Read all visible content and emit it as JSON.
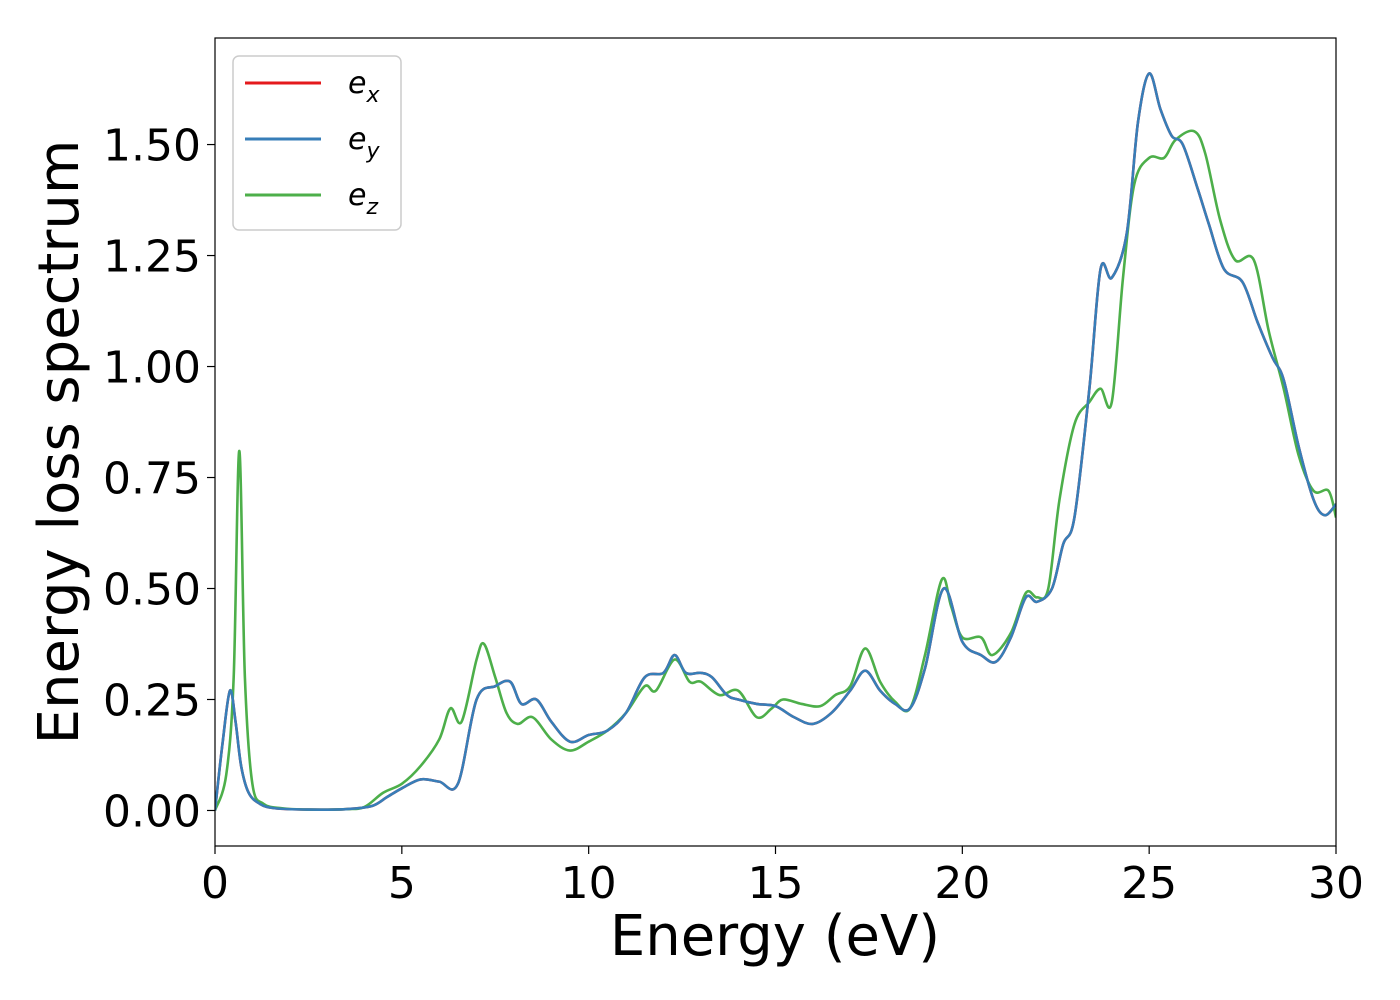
{
  "chart_data": {
    "type": "line",
    "title": "",
    "xlabel": "Energy (eV)",
    "ylabel": "Energy loss spectrum",
    "xlim": [
      0,
      30
    ],
    "ylim": [
      -0.08,
      1.74
    ],
    "xticks": [
      0,
      5,
      10,
      15,
      20,
      25,
      30
    ],
    "xtick_labels": [
      "0",
      "5",
      "10",
      "15",
      "20",
      "25",
      "30"
    ],
    "yticks": [
      0,
      0.25,
      0.5,
      0.75,
      1.0,
      1.25,
      1.5
    ],
    "ytick_labels": [
      "0.00",
      "0.25",
      "0.50",
      "0.75",
      "1.00",
      "1.25",
      "1.50"
    ],
    "grid": false,
    "legend_position": "top-left",
    "series": [
      {
        "name": "e",
        "subscript": "x",
        "color": "#e41a1c",
        "points": [
          [
            0,
            0
          ],
          [
            0.2,
            0.15
          ],
          [
            0.4,
            0.27
          ],
          [
            0.55,
            0.2
          ],
          [
            0.7,
            0.1
          ],
          [
            0.9,
            0.04
          ],
          [
            1.2,
            0.015
          ],
          [
            1.6,
            0.005
          ],
          [
            2.5,
            0.002
          ],
          [
            3.5,
            0.003
          ],
          [
            4.2,
            0.01
          ],
          [
            4.6,
            0.03
          ],
          [
            5.0,
            0.05
          ],
          [
            5.5,
            0.07
          ],
          [
            6.0,
            0.065
          ],
          [
            6.5,
            0.06
          ],
          [
            7.0,
            0.25
          ],
          [
            7.5,
            0.28
          ],
          [
            7.9,
            0.29
          ],
          [
            8.2,
            0.24
          ],
          [
            8.6,
            0.25
          ],
          [
            9.0,
            0.2
          ],
          [
            9.5,
            0.155
          ],
          [
            10.0,
            0.17
          ],
          [
            10.5,
            0.18
          ],
          [
            11.0,
            0.22
          ],
          [
            11.5,
            0.3
          ],
          [
            12.0,
            0.31
          ],
          [
            12.3,
            0.35
          ],
          [
            12.6,
            0.31
          ],
          [
            13.0,
            0.31
          ],
          [
            13.3,
            0.3
          ],
          [
            13.7,
            0.26
          ],
          [
            14.0,
            0.25
          ],
          [
            14.5,
            0.24
          ],
          [
            15.0,
            0.235
          ],
          [
            15.5,
            0.21
          ],
          [
            16.0,
            0.195
          ],
          [
            16.5,
            0.22
          ],
          [
            17.0,
            0.27
          ],
          [
            17.4,
            0.315
          ],
          [
            17.8,
            0.27
          ],
          [
            18.2,
            0.24
          ],
          [
            18.6,
            0.23
          ],
          [
            19.0,
            0.32
          ],
          [
            19.5,
            0.5
          ],
          [
            20.0,
            0.38
          ],
          [
            20.5,
            0.35
          ],
          [
            20.9,
            0.335
          ],
          [
            21.3,
            0.39
          ],
          [
            21.7,
            0.48
          ],
          [
            22.0,
            0.47
          ],
          [
            22.4,
            0.5
          ],
          [
            22.7,
            0.6
          ],
          [
            23.0,
            0.66
          ],
          [
            23.4,
            0.95
          ],
          [
            23.7,
            1.22
          ],
          [
            24.0,
            1.2
          ],
          [
            24.4,
            1.3
          ],
          [
            24.7,
            1.55
          ],
          [
            25.0,
            1.66
          ],
          [
            25.3,
            1.58
          ],
          [
            25.6,
            1.52
          ],
          [
            25.9,
            1.5
          ],
          [
            26.3,
            1.4
          ],
          [
            26.6,
            1.32
          ],
          [
            27.0,
            1.22
          ],
          [
            27.5,
            1.19
          ],
          [
            27.9,
            1.1
          ],
          [
            28.3,
            1.02
          ],
          [
            28.6,
            0.97
          ],
          [
            29.0,
            0.82
          ],
          [
            29.4,
            0.7
          ],
          [
            29.7,
            0.665
          ],
          [
            30,
            0.69
          ]
        ]
      },
      {
        "name": "e",
        "subscript": "y",
        "color": "#377eb8",
        "points": [
          [
            0,
            0
          ],
          [
            0.2,
            0.15
          ],
          [
            0.4,
            0.27
          ],
          [
            0.55,
            0.2
          ],
          [
            0.7,
            0.1
          ],
          [
            0.9,
            0.04
          ],
          [
            1.2,
            0.015
          ],
          [
            1.6,
            0.005
          ],
          [
            2.5,
            0.002
          ],
          [
            3.5,
            0.003
          ],
          [
            4.2,
            0.01
          ],
          [
            4.6,
            0.03
          ],
          [
            5.0,
            0.05
          ],
          [
            5.5,
            0.07
          ],
          [
            6.0,
            0.065
          ],
          [
            6.5,
            0.06
          ],
          [
            7.0,
            0.25
          ],
          [
            7.5,
            0.28
          ],
          [
            7.9,
            0.29
          ],
          [
            8.2,
            0.24
          ],
          [
            8.6,
            0.25
          ],
          [
            9.0,
            0.2
          ],
          [
            9.5,
            0.155
          ],
          [
            10.0,
            0.17
          ],
          [
            10.5,
            0.18
          ],
          [
            11.0,
            0.22
          ],
          [
            11.5,
            0.3
          ],
          [
            12.0,
            0.31
          ],
          [
            12.3,
            0.35
          ],
          [
            12.6,
            0.31
          ],
          [
            13.0,
            0.31
          ],
          [
            13.3,
            0.3
          ],
          [
            13.7,
            0.26
          ],
          [
            14.0,
            0.25
          ],
          [
            14.5,
            0.24
          ],
          [
            15.0,
            0.235
          ],
          [
            15.5,
            0.21
          ],
          [
            16.0,
            0.195
          ],
          [
            16.5,
            0.22
          ],
          [
            17.0,
            0.27
          ],
          [
            17.4,
            0.315
          ],
          [
            17.8,
            0.27
          ],
          [
            18.2,
            0.24
          ],
          [
            18.6,
            0.23
          ],
          [
            19.0,
            0.32
          ],
          [
            19.5,
            0.5
          ],
          [
            20.0,
            0.38
          ],
          [
            20.5,
            0.35
          ],
          [
            20.9,
            0.335
          ],
          [
            21.3,
            0.39
          ],
          [
            21.7,
            0.48
          ],
          [
            22.0,
            0.47
          ],
          [
            22.4,
            0.5
          ],
          [
            22.7,
            0.6
          ],
          [
            23.0,
            0.66
          ],
          [
            23.4,
            0.95
          ],
          [
            23.7,
            1.22
          ],
          [
            24.0,
            1.2
          ],
          [
            24.4,
            1.3
          ],
          [
            24.7,
            1.55
          ],
          [
            25.0,
            1.66
          ],
          [
            25.3,
            1.58
          ],
          [
            25.6,
            1.52
          ],
          [
            25.9,
            1.5
          ],
          [
            26.3,
            1.4
          ],
          [
            26.6,
            1.32
          ],
          [
            27.0,
            1.22
          ],
          [
            27.5,
            1.19
          ],
          [
            27.9,
            1.1
          ],
          [
            28.3,
            1.02
          ],
          [
            28.6,
            0.97
          ],
          [
            29.0,
            0.82
          ],
          [
            29.4,
            0.7
          ],
          [
            29.7,
            0.665
          ],
          [
            30,
            0.69
          ]
        ]
      },
      {
        "name": "e",
        "subscript": "z",
        "color": "#4daf4a",
        "points": [
          [
            0,
            0
          ],
          [
            0.3,
            0.08
          ],
          [
            0.5,
            0.3
          ],
          [
            0.65,
            0.81
          ],
          [
            0.8,
            0.3
          ],
          [
            1.0,
            0.06
          ],
          [
            1.3,
            0.015
          ],
          [
            1.8,
            0.005
          ],
          [
            2.5,
            0.002
          ],
          [
            3.5,
            0.003
          ],
          [
            4.0,
            0.008
          ],
          [
            4.5,
            0.04
          ],
          [
            5.0,
            0.06
          ],
          [
            5.5,
            0.1
          ],
          [
            6.0,
            0.16
          ],
          [
            6.3,
            0.23
          ],
          [
            6.6,
            0.2
          ],
          [
            7.0,
            0.34
          ],
          [
            7.2,
            0.375
          ],
          [
            7.5,
            0.3
          ],
          [
            7.8,
            0.22
          ],
          [
            8.1,
            0.195
          ],
          [
            8.5,
            0.21
          ],
          [
            9.0,
            0.16
          ],
          [
            9.5,
            0.135
          ],
          [
            10.0,
            0.155
          ],
          [
            10.5,
            0.18
          ],
          [
            11.0,
            0.22
          ],
          [
            11.5,
            0.28
          ],
          [
            11.8,
            0.27
          ],
          [
            12.3,
            0.34
          ],
          [
            12.7,
            0.29
          ],
          [
            13.0,
            0.29
          ],
          [
            13.5,
            0.26
          ],
          [
            14.0,
            0.27
          ],
          [
            14.5,
            0.21
          ],
          [
            14.9,
            0.23
          ],
          [
            15.2,
            0.25
          ],
          [
            15.7,
            0.24
          ],
          [
            16.2,
            0.235
          ],
          [
            16.6,
            0.26
          ],
          [
            17.0,
            0.28
          ],
          [
            17.4,
            0.365
          ],
          [
            17.8,
            0.29
          ],
          [
            18.2,
            0.245
          ],
          [
            18.6,
            0.23
          ],
          [
            19.0,
            0.35
          ],
          [
            19.45,
            0.52
          ],
          [
            19.7,
            0.46
          ],
          [
            20.0,
            0.39
          ],
          [
            20.5,
            0.39
          ],
          [
            20.8,
            0.35
          ],
          [
            21.3,
            0.4
          ],
          [
            21.7,
            0.49
          ],
          [
            22.0,
            0.48
          ],
          [
            22.3,
            0.5
          ],
          [
            22.6,
            0.7
          ],
          [
            23.0,
            0.87
          ],
          [
            23.4,
            0.92
          ],
          [
            23.7,
            0.95
          ],
          [
            24.0,
            0.92
          ],
          [
            24.3,
            1.2
          ],
          [
            24.6,
            1.41
          ],
          [
            25.0,
            1.47
          ],
          [
            25.4,
            1.47
          ],
          [
            25.7,
            1.51
          ],
          [
            26.2,
            1.53
          ],
          [
            26.5,
            1.48
          ],
          [
            26.9,
            1.33
          ],
          [
            27.3,
            1.24
          ],
          [
            27.8,
            1.24
          ],
          [
            28.2,
            1.08
          ],
          [
            28.6,
            0.95
          ],
          [
            29.0,
            0.8
          ],
          [
            29.4,
            0.72
          ],
          [
            29.8,
            0.72
          ],
          [
            30,
            0.66
          ]
        ]
      }
    ]
  }
}
